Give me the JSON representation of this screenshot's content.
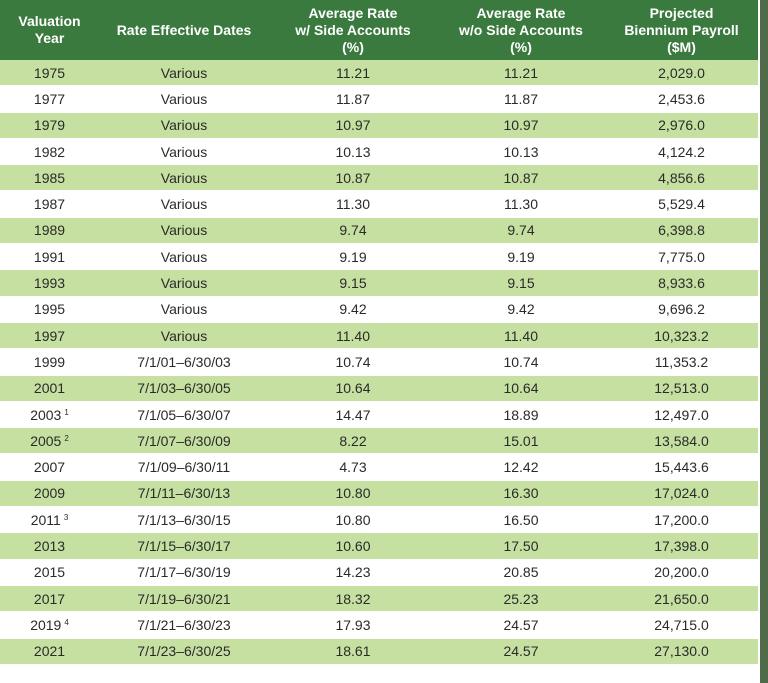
{
  "table": {
    "headers": [
      {
        "line1": "Valuation",
        "line2": "Year",
        "line3": ""
      },
      {
        "line1": "Rate Effective Dates",
        "line2": "",
        "line3": ""
      },
      {
        "line1": "Average Rate",
        "line2": "w/ Side Accounts",
        "line3": "(%)"
      },
      {
        "line1": "Average Rate",
        "line2": "w/o Side Accounts",
        "line3": "(%)"
      },
      {
        "line1": "Projected",
        "line2": "Biennium Payroll",
        "line3": "($M)"
      }
    ],
    "rows": [
      {
        "year": "1975",
        "note": "",
        "dates": "Various",
        "with_side": "11.21",
        "without_side": "11.21",
        "payroll": "2,029.0"
      },
      {
        "year": "1977",
        "note": "",
        "dates": "Various",
        "with_side": "11.87",
        "without_side": "11.87",
        "payroll": "2,453.6"
      },
      {
        "year": "1979",
        "note": "",
        "dates": "Various",
        "with_side": "10.97",
        "without_side": "10.97",
        "payroll": "2,976.0"
      },
      {
        "year": "1982",
        "note": "",
        "dates": "Various",
        "with_side": "10.13",
        "without_side": "10.13",
        "payroll": "4,124.2"
      },
      {
        "year": "1985",
        "note": "",
        "dates": "Various",
        "with_side": "10.87",
        "without_side": "10.87",
        "payroll": "4,856.6"
      },
      {
        "year": "1987",
        "note": "",
        "dates": "Various",
        "with_side": "11.30",
        "without_side": "11.30",
        "payroll": "5,529.4"
      },
      {
        "year": "1989",
        "note": "",
        "dates": "Various",
        "with_side": "9.74",
        "without_side": "9.74",
        "payroll": "6,398.8"
      },
      {
        "year": "1991",
        "note": "",
        "dates": "Various",
        "with_side": "9.19",
        "without_side": "9.19",
        "payroll": "7,775.0"
      },
      {
        "year": "1993",
        "note": "",
        "dates": "Various",
        "with_side": "9.15",
        "without_side": "9.15",
        "payroll": "8,933.6"
      },
      {
        "year": "1995",
        "note": "",
        "dates": "Various",
        "with_side": "9.42",
        "without_side": "9.42",
        "payroll": "9,696.2"
      },
      {
        "year": "1997",
        "note": "",
        "dates": "Various",
        "with_side": "11.40",
        "without_side": "11.40",
        "payroll": "10,323.2"
      },
      {
        "year": "1999",
        "note": "",
        "dates": "7/1/01–6/30/03",
        "with_side": "10.74",
        "without_side": "10.74",
        "payroll": "11,353.2"
      },
      {
        "year": "2001",
        "note": "",
        "dates": "7/1/03–6/30/05",
        "with_side": "10.64",
        "without_side": "10.64",
        "payroll": "12,513.0"
      },
      {
        "year": "2003",
        "note": "1",
        "dates": "7/1/05–6/30/07",
        "with_side": "14.47",
        "without_side": "18.89",
        "payroll": "12,497.0"
      },
      {
        "year": "2005",
        "note": "2",
        "dates": "7/1/07–6/30/09",
        "with_side": "8.22",
        "without_side": "15.01",
        "payroll": "13,584.0"
      },
      {
        "year": "2007",
        "note": "",
        "dates": "7/1/09–6/30/11",
        "with_side": "4.73",
        "without_side": "12.42",
        "payroll": "15,443.6"
      },
      {
        "year": "2009",
        "note": "",
        "dates": "7/1/11–6/30/13",
        "with_side": "10.80",
        "without_side": "16.30",
        "payroll": "17,024.0"
      },
      {
        "year": "2011",
        "note": "3",
        "dates": "7/1/13–6/30/15",
        "with_side": "10.80",
        "without_side": "16.50",
        "payroll": "17,200.0"
      },
      {
        "year": "2013",
        "note": "",
        "dates": "7/1/15–6/30/17",
        "with_side": "10.60",
        "without_side": "17.50",
        "payroll": "17,398.0"
      },
      {
        "year": "2015",
        "note": "",
        "dates": "7/1/17–6/30/19",
        "with_side": "14.23",
        "without_side": "20.85",
        "payroll": "20,200.0"
      },
      {
        "year": "2017",
        "note": "",
        "dates": "7/1/19–6/30/21",
        "with_side": "18.32",
        "without_side": "25.23",
        "payroll": "21,650.0"
      },
      {
        "year": "2019",
        "note": "4",
        "dates": "7/1/21–6/30/23",
        "with_side": "17.93",
        "without_side": "24.57",
        "payroll": "24,715.0"
      },
      {
        "year": "2021",
        "note": "",
        "dates": "7/1/23–6/30/25",
        "with_side": "18.61",
        "without_side": "24.57",
        "payroll": "27,130.0"
      }
    ]
  },
  "colors": {
    "header_bg": "#3a7a3f",
    "header_text": "#ffffff",
    "stripe": "#c6e0a1",
    "plain": "#ffffff",
    "text": "#2a2a2a"
  }
}
